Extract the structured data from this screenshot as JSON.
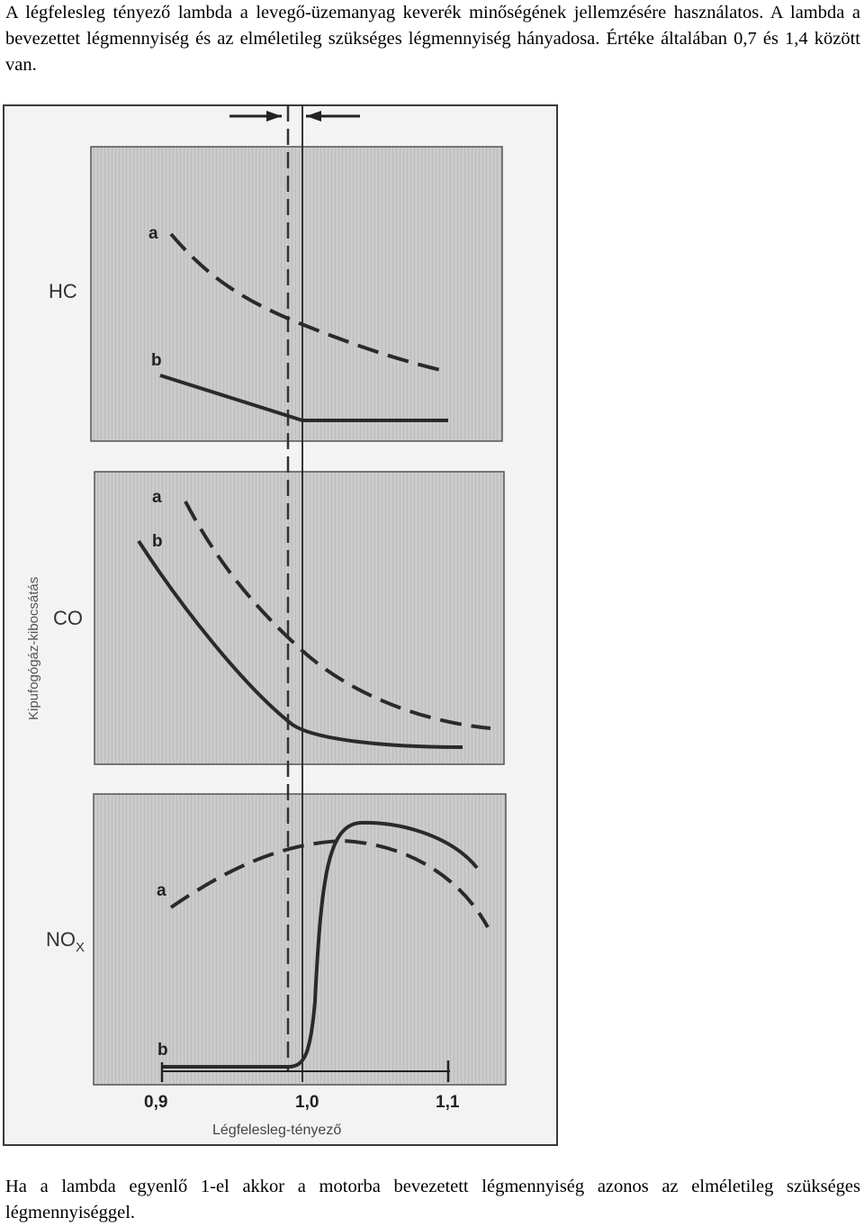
{
  "intro_text": "A légfelesleg tényező lambda a levegő-üzemanyag keverék minőségének jellemzésére használatos. A lambda a bevezettet légmennyiség és az elméletileg szükséges légmennyiség hányadosa. Értéke általában 0,7 és 1,4 között van.",
  "outro_text": "Ha a lambda egyenlő 1-el akkor a motorba bevezetett légmennyiség azonos az elméletileg szükséges légmennyiséggel.",
  "figure": {
    "y_axis_label": "Kipufogógáz-kibocsátás",
    "x_axis_label": "Légfelesleg-tényező",
    "x_ticks": [
      "0,9",
      "1,0",
      "1,1"
    ],
    "panels": [
      {
        "label": "HC",
        "curve_a": "a",
        "curve_b": "b"
      },
      {
        "label": "CO",
        "curve_a": "a",
        "curve_b": "b"
      },
      {
        "label": "NO",
        "label_sub": "X",
        "curve_a": "a",
        "curve_b": "b"
      }
    ],
    "colors": {
      "panel_fill": "#c9c9c9",
      "hatch": "#b4b4b4",
      "curve": "#2a2a2a",
      "frame": "#3a3a3a"
    }
  }
}
